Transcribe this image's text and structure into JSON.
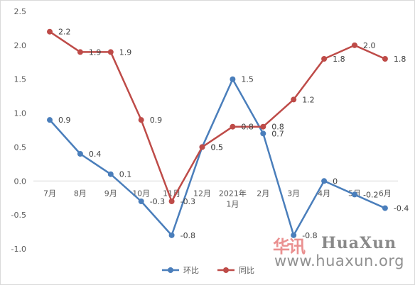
{
  "chart_data": {
    "type": "line",
    "categories": [
      [
        "7月"
      ],
      [
        "8月"
      ],
      [
        "9月"
      ],
      [
        "10月"
      ],
      [
        "11月"
      ],
      [
        "12月"
      ],
      [
        "2021年",
        "1月"
      ],
      [
        "2月"
      ],
      [
        "3月"
      ],
      [
        "4月"
      ],
      [
        "5月"
      ],
      [
        "6月"
      ]
    ],
    "series": [
      {
        "name": "环比",
        "color": "#4a7ebb",
        "values": [
          0.9,
          0.4,
          0.1,
          -0.3,
          -0.8,
          0.5,
          1.5,
          0.7,
          -0.8,
          0,
          -0.2,
          -0.4
        ],
        "labels": [
          "0.9",
          "0.4",
          "0.1",
          "-0.3",
          "-0.8",
          "0.5",
          "1.5",
          "0.7",
          "-0.8",
          "0",
          "-0.2",
          "-0.4"
        ]
      },
      {
        "name": "同比",
        "color": "#be4b48",
        "values": [
          2.2,
          1.9,
          1.9,
          0.9,
          -0.3,
          0.5,
          0.8,
          0.8,
          1.2,
          1.8,
          2.0,
          1.8
        ],
        "labels": [
          "2.2",
          "1.9",
          "1.9",
          "0.9",
          "-0.3",
          "0.5",
          "0.8",
          "0.8",
          "1.2",
          "1.8",
          "2.0",
          "1.8"
        ]
      }
    ],
    "y_ticks": [
      "2.5",
      "2.0",
      "1.5",
      "1.0",
      "0.5",
      "0.0",
      "-0.5",
      "-1.0"
    ],
    "ylim": [
      -1.0,
      2.5
    ],
    "grid": false,
    "legend_position": "bottom-center"
  },
  "watermark": {
    "logo_text": "华讯",
    "brand": "HuaXun",
    "url": "www.huaxun.org"
  }
}
